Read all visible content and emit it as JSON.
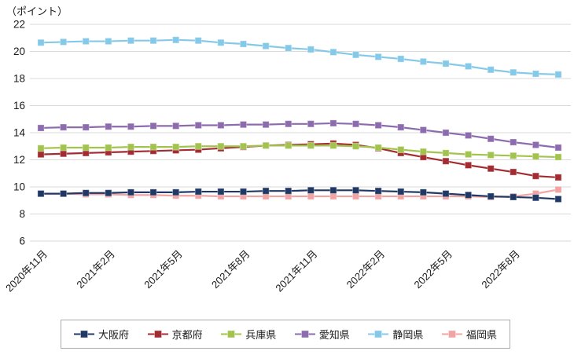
{
  "y_axis": {
    "unit_label": "（ポイント）"
  },
  "chart_data": {
    "type": "line",
    "title": "（ポイント）",
    "xlabel": "",
    "ylabel": "ポイント",
    "ylim": [
      6,
      22
    ],
    "y_ticks": [
      6,
      8,
      10,
      12,
      14,
      16,
      18,
      20,
      22
    ],
    "grid": "horizontal",
    "legend_position": "bottom",
    "x": [
      "2020年11月",
      "2020年12月",
      "2021年1月",
      "2021年2月",
      "2021年3月",
      "2021年4月",
      "2021年5月",
      "2021年6月",
      "2021年7月",
      "2021年8月",
      "2021年9月",
      "2021年10月",
      "2021年11月",
      "2021年12月",
      "2022年1月",
      "2022年2月",
      "2022年3月",
      "2022年4月",
      "2022年5月",
      "2022年6月",
      "2022年7月",
      "2022年8月",
      "2022年9月",
      "2022年10月"
    ],
    "x_tick_labels": [
      "2020年11月",
      "2021年2月",
      "2021年5月",
      "2021年8月",
      "2021年11月",
      "2022年2月",
      "2022年5月",
      "2022年8月"
    ],
    "series": [
      {
        "name": "大阪府",
        "color": "#1F3864",
        "values": [
          9.5,
          9.5,
          9.55,
          9.55,
          9.6,
          9.6,
          9.6,
          9.65,
          9.65,
          9.65,
          9.7,
          9.7,
          9.75,
          9.75,
          9.75,
          9.7,
          9.65,
          9.6,
          9.5,
          9.4,
          9.3,
          9.25,
          9.2,
          9.1
        ]
      },
      {
        "name": "京都府",
        "color": "#A22C31",
        "values": [
          12.4,
          12.45,
          12.5,
          12.55,
          12.6,
          12.65,
          12.7,
          12.75,
          12.85,
          12.95,
          13.05,
          13.1,
          13.15,
          13.2,
          13.1,
          12.85,
          12.5,
          12.2,
          11.9,
          11.6,
          11.35,
          11.1,
          10.8,
          10.7
        ]
      },
      {
        "name": "兵庫県",
        "color": "#A2C44E",
        "values": [
          12.85,
          12.9,
          12.9,
          12.9,
          12.95,
          12.95,
          12.95,
          13.0,
          13.0,
          13.0,
          13.05,
          13.05,
          13.05,
          13.05,
          13.0,
          12.9,
          12.75,
          12.6,
          12.5,
          12.4,
          12.35,
          12.3,
          12.25,
          12.2
        ]
      },
      {
        "name": "愛知県",
        "color": "#8C6BAE",
        "values": [
          14.35,
          14.4,
          14.4,
          14.45,
          14.45,
          14.5,
          14.5,
          14.55,
          14.55,
          14.6,
          14.6,
          14.65,
          14.65,
          14.7,
          14.65,
          14.55,
          14.4,
          14.2,
          14.0,
          13.8,
          13.55,
          13.3,
          13.1,
          12.9
        ]
      },
      {
        "name": "静岡県",
        "color": "#84C9E8",
        "values": [
          20.65,
          20.7,
          20.75,
          20.75,
          20.8,
          20.8,
          20.85,
          20.8,
          20.65,
          20.55,
          20.4,
          20.25,
          20.15,
          19.95,
          19.75,
          19.6,
          19.45,
          19.25,
          19.1,
          18.9,
          18.65,
          18.45,
          18.35,
          18.3
        ]
      },
      {
        "name": "福岡県",
        "color": "#F2A3A3",
        "values": [
          9.5,
          9.5,
          9.45,
          9.45,
          9.4,
          9.4,
          9.35,
          9.35,
          9.3,
          9.3,
          9.3,
          9.3,
          9.3,
          9.3,
          9.3,
          9.3,
          9.3,
          9.3,
          9.3,
          9.3,
          9.25,
          9.3,
          9.5,
          9.8
        ]
      }
    ]
  }
}
